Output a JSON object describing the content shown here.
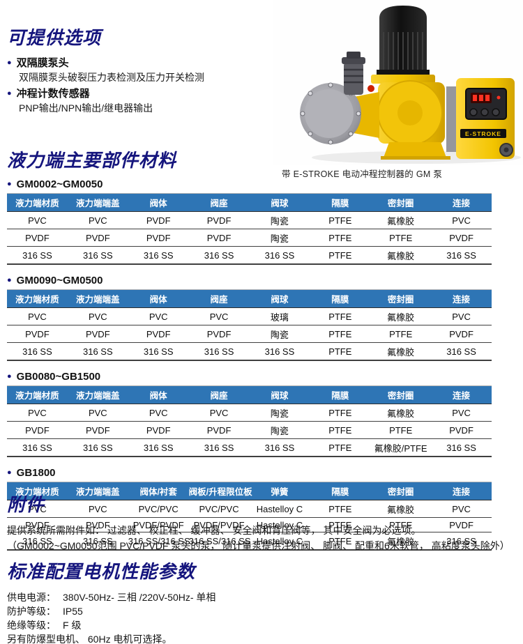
{
  "options": {
    "title": "可提供选项",
    "items": [
      {
        "label": "双隔膜泵头",
        "detail": "双隔膜泵头破裂压力表检测及压力开关检测"
      },
      {
        "label": "冲程计数传感器",
        "detail": "PNP输出/NPN输出/继电器输出"
      }
    ]
  },
  "pump_figure": {
    "caption": "带 E-STROKE 电动冲程控制器的 GM 泵",
    "e_stroke_label": "E-STROKE"
  },
  "materials": {
    "title": "液力端主要部件材料",
    "tables": [
      {
        "model": "GM0002~GM0050",
        "headers": [
          "液力端材质",
          "液力端端盖",
          "阀体",
          "阀座",
          "阀球",
          "隔膜",
          "密封圈",
          "连接"
        ],
        "rows": [
          [
            "PVC",
            "PVC",
            "PVDF",
            "PVDF",
            "陶瓷",
            "PTFE",
            "氟橡胶",
            "PVC"
          ],
          [
            "PVDF",
            "PVDF",
            "PVDF",
            "PVDF",
            "陶瓷",
            "PTFE",
            "PTFE",
            "PVDF"
          ],
          [
            "316 SS",
            "316 SS",
            "316 SS",
            "316 SS",
            "316 SS",
            "PTFE",
            "氟橡胶",
            "316 SS"
          ]
        ]
      },
      {
        "model": "GM0090~GM0500",
        "headers": [
          "液力端材质",
          "液力端端盖",
          "阀体",
          "阀座",
          "阀球",
          "隔膜",
          "密封圈",
          "连接"
        ],
        "rows": [
          [
            "PVC",
            "PVC",
            "PVC",
            "PVC",
            "玻璃",
            "PTFE",
            "氟橡胶",
            "PVC"
          ],
          [
            "PVDF",
            "PVDF",
            "PVDF",
            "PVDF",
            "陶瓷",
            "PTFE",
            "PTFE",
            "PVDF"
          ],
          [
            "316 SS",
            "316 SS",
            "316 SS",
            "316 SS",
            "316 SS",
            "PTFE",
            "氟橡胶",
            "316 SS"
          ]
        ]
      },
      {
        "model": "GB0080~GB1500",
        "headers": [
          "液力端材质",
          "液力端端盖",
          "阀体",
          "阀座",
          "阀球",
          "隔膜",
          "密封圈",
          "连接"
        ],
        "rows": [
          [
            "PVC",
            "PVC",
            "PVC",
            "PVC",
            "陶瓷",
            "PTFE",
            "氟橡胶",
            "PVC"
          ],
          [
            "PVDF",
            "PVDF",
            "PVDF",
            "PVDF",
            "陶瓷",
            "PTFE",
            "PTFE",
            "PVDF"
          ],
          [
            "316 SS",
            "316 SS",
            "316 SS",
            "316 SS",
            "316 SS",
            "PTFE",
            "氟橡胶/PTFE",
            "316 SS"
          ]
        ]
      },
      {
        "model": "GB1800",
        "headers": [
          "液力端材质",
          "液力端端盖",
          "阀体/衬套",
          "阀板/升程限位板",
          "弹簧",
          "隔膜",
          "密封圈",
          "连接"
        ],
        "rows": [
          [
            "PVC",
            "PVC",
            "PVC/PVC",
            "PVC/PVC",
            "Hastelloy C",
            "PTFE",
            "氟橡胶",
            "PVC"
          ],
          [
            "PVDF",
            "PVDF",
            "PVDF/PVDF",
            "PVDF/PVDF",
            "Hastelloy C",
            "PTFE",
            "PTFE",
            "PVDF"
          ],
          [
            "316 SS",
            "316 SS",
            "316 SS/316 SS",
            "316 SS/316 SS",
            "Hastelloy C",
            "PTFE",
            "氟橡胶",
            "316 SS"
          ]
        ]
      }
    ]
  },
  "accessories": {
    "title": "附件",
    "lines": [
      "提供系统所需附件如： 过滤器、 校正柱、 缓冲器、 安全阀和背压阀等， 其中安全阀为必选项。",
      "（GM0002~GM0050范围 PVC/PVDF 泵头的泵， 随计量泵提供注射阀、 脚阀、 配重和6米软管， 高粘度泵头除外）"
    ]
  },
  "motor": {
    "title": "标准配置电机性能参数",
    "params": [
      {
        "label": "供电电源：",
        "value": "380V-50Hz- 三相 /220V-50Hz- 单相"
      },
      {
        "label": "防护等级：",
        "value": "IP55"
      },
      {
        "label": "绝缘等级：",
        "value": "F 级"
      }
    ],
    "note": "另有防爆型电机、 60Hz 电机可选择。"
  },
  "colors": {
    "section_title_navy": "#15157d",
    "table_header_blue": "#2e75b5",
    "pump_yellow": "#f2c400",
    "led_red": "#ff3222"
  }
}
